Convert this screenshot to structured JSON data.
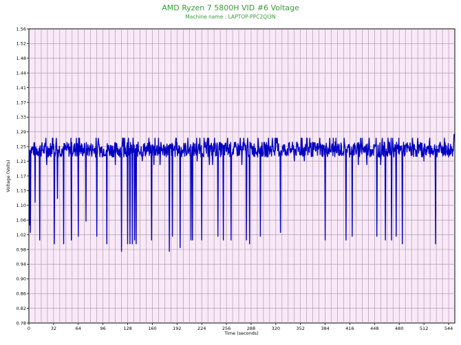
{
  "chart_data": {
    "type": "line",
    "title": "AMD Ryzen 7 5800H VID #6 Voltage",
    "subtitle": "Machine name : LAPTOP-PPC2QI3N",
    "xlabel": "Time (seconds)",
    "ylabel": "Voltage (Volts)",
    "xlim": [
      0,
      552
    ],
    "ylim": [
      0.78,
      1.56
    ],
    "x_ticks": [
      0,
      32,
      64,
      96,
      128,
      160,
      192,
      224,
      256,
      288,
      320,
      352,
      384,
      416,
      448,
      480,
      512,
      544
    ],
    "y_ticks": [
      0.78,
      0.82,
      0.86,
      0.9,
      0.94,
      0.98,
      1.02,
      1.06,
      1.1,
      1.13,
      1.17,
      1.21,
      1.25,
      1.29,
      1.33,
      1.37,
      1.41,
      1.44,
      1.48,
      1.52,
      1.56
    ],
    "grid": true,
    "background_color": "#f8e8f8",
    "line_color": "#0000c0",
    "series": [
      {
        "baseline": 1.24,
        "baseline_jitter": 0.02,
        "dips": [
          {
            "x": 1,
            "y": 1.04
          },
          {
            "x": 2,
            "y": 1.02
          },
          {
            "x": 8,
            "y": 1.1
          },
          {
            "x": 14,
            "y": 1.0
          },
          {
            "x": 23,
            "y": 1.2
          },
          {
            "x": 33,
            "y": 0.99
          },
          {
            "x": 37,
            "y": 1.11
          },
          {
            "x": 45,
            "y": 0.99
          },
          {
            "x": 55,
            "y": 1.0
          },
          {
            "x": 64,
            "y": 1.01
          },
          {
            "x": 74,
            "y": 1.05
          },
          {
            "x": 88,
            "y": 1.01
          },
          {
            "x": 101,
            "y": 0.99
          },
          {
            "x": 112,
            "y": 1.2
          },
          {
            "x": 120,
            "y": 0.97
          },
          {
            "x": 128,
            "y": 0.99
          },
          {
            "x": 131,
            "y": 0.99
          },
          {
            "x": 134,
            "y": 0.99
          },
          {
            "x": 137,
            "y": 1.0
          },
          {
            "x": 139,
            "y": 0.99
          },
          {
            "x": 147,
            "y": 1.21
          },
          {
            "x": 159,
            "y": 1.0
          },
          {
            "x": 162,
            "y": 1.2
          },
          {
            "x": 170,
            "y": 1.2
          },
          {
            "x": 182,
            "y": 0.97
          },
          {
            "x": 186,
            "y": 1.01
          },
          {
            "x": 196,
            "y": 0.98
          },
          {
            "x": 210,
            "y": 1.0
          },
          {
            "x": 212,
            "y": 1.0
          },
          {
            "x": 218,
            "y": 1.21
          },
          {
            "x": 224,
            "y": 1.0
          },
          {
            "x": 234,
            "y": 1.2
          },
          {
            "x": 238,
            "y": 1.2
          },
          {
            "x": 245,
            "y": 1.01
          },
          {
            "x": 252,
            "y": 1.0
          },
          {
            "x": 262,
            "y": 1.0
          },
          {
            "x": 276,
            "y": 1.2
          },
          {
            "x": 282,
            "y": 1.0
          },
          {
            "x": 286,
            "y": 0.99
          },
          {
            "x": 300,
            "y": 1.01
          },
          {
            "x": 326,
            "y": 1.02
          },
          {
            "x": 344,
            "y": 1.21
          },
          {
            "x": 357,
            "y": 1.21
          },
          {
            "x": 384,
            "y": 1.0
          },
          {
            "x": 411,
            "y": 1.0
          },
          {
            "x": 419,
            "y": 1.01
          },
          {
            "x": 427,
            "y": 1.2
          },
          {
            "x": 438,
            "y": 1.2
          },
          {
            "x": 451,
            "y": 1.01
          },
          {
            "x": 456,
            "y": 1.2
          },
          {
            "x": 462,
            "y": 1.0
          },
          {
            "x": 470,
            "y": 1.0
          },
          {
            "x": 476,
            "y": 1.01
          },
          {
            "x": 484,
            "y": 0.99
          },
          {
            "x": 512,
            "y": 1.21
          },
          {
            "x": 527,
            "y": 0.99
          },
          {
            "x": 544,
            "y": 1.22
          }
        ],
        "end_value": 1.28
      }
    ]
  }
}
